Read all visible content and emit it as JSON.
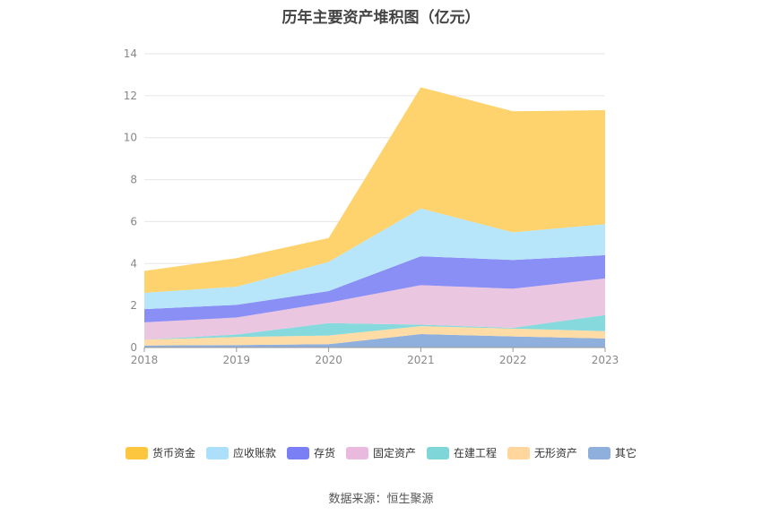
{
  "chart_data": {
    "type": "area",
    "title": "历年主要资产堆积图（亿元）",
    "x": [
      "2018",
      "2019",
      "2020",
      "2021",
      "2022",
      "2023"
    ],
    "ylim": [
      0,
      14
    ],
    "yticks": [
      "0",
      "2",
      "4",
      "6",
      "8",
      "10",
      "12",
      "14"
    ],
    "stacked": true,
    "grid": true,
    "legend_position": "bottom",
    "series": [
      {
        "name": "其它",
        "color": "#8fb0dc",
        "values": [
          0.1,
          0.12,
          0.16,
          0.64,
          0.53,
          0.43
        ]
      },
      {
        "name": "无形资产",
        "color": "#ffdca6",
        "values": [
          0.27,
          0.38,
          0.41,
          0.38,
          0.37,
          0.35
        ]
      },
      {
        "name": "在建工程",
        "color": "#86d9dc",
        "values": [
          0.0,
          0.12,
          0.59,
          0.07,
          0.04,
          0.77
        ]
      },
      {
        "name": "固定资产",
        "color": "#ebc6e1",
        "values": [
          0.83,
          0.81,
          0.98,
          1.88,
          1.86,
          1.74
        ]
      },
      {
        "name": "存货",
        "color": "#8a8ff5",
        "values": [
          0.63,
          0.6,
          0.55,
          1.38,
          1.37,
          1.11
        ]
      },
      {
        "name": "应收账款",
        "color": "#b7e6fb",
        "values": [
          0.78,
          0.87,
          1.39,
          2.28,
          1.32,
          1.48
        ]
      },
      {
        "name": "货币资金",
        "color": "#fed26c",
        "values": [
          1.04,
          1.36,
          1.14,
          5.77,
          5.77,
          5.43
        ]
      }
    ],
    "legend_order": [
      "货币资金",
      "应收账款",
      "存货",
      "固定资产",
      "在建工程",
      "无形资产",
      "其它"
    ],
    "legend_colors": {
      "货币资金": "#fdc63f",
      "应收账款": "#abdffa",
      "存货": "#7b7ff5",
      "固定资产": "#eab9de",
      "在建工程": "#7fd6d8",
      "无形资产": "#ffd69c",
      "其它": "#8fb0dc"
    }
  },
  "source_text": "数据来源：恒生聚源"
}
